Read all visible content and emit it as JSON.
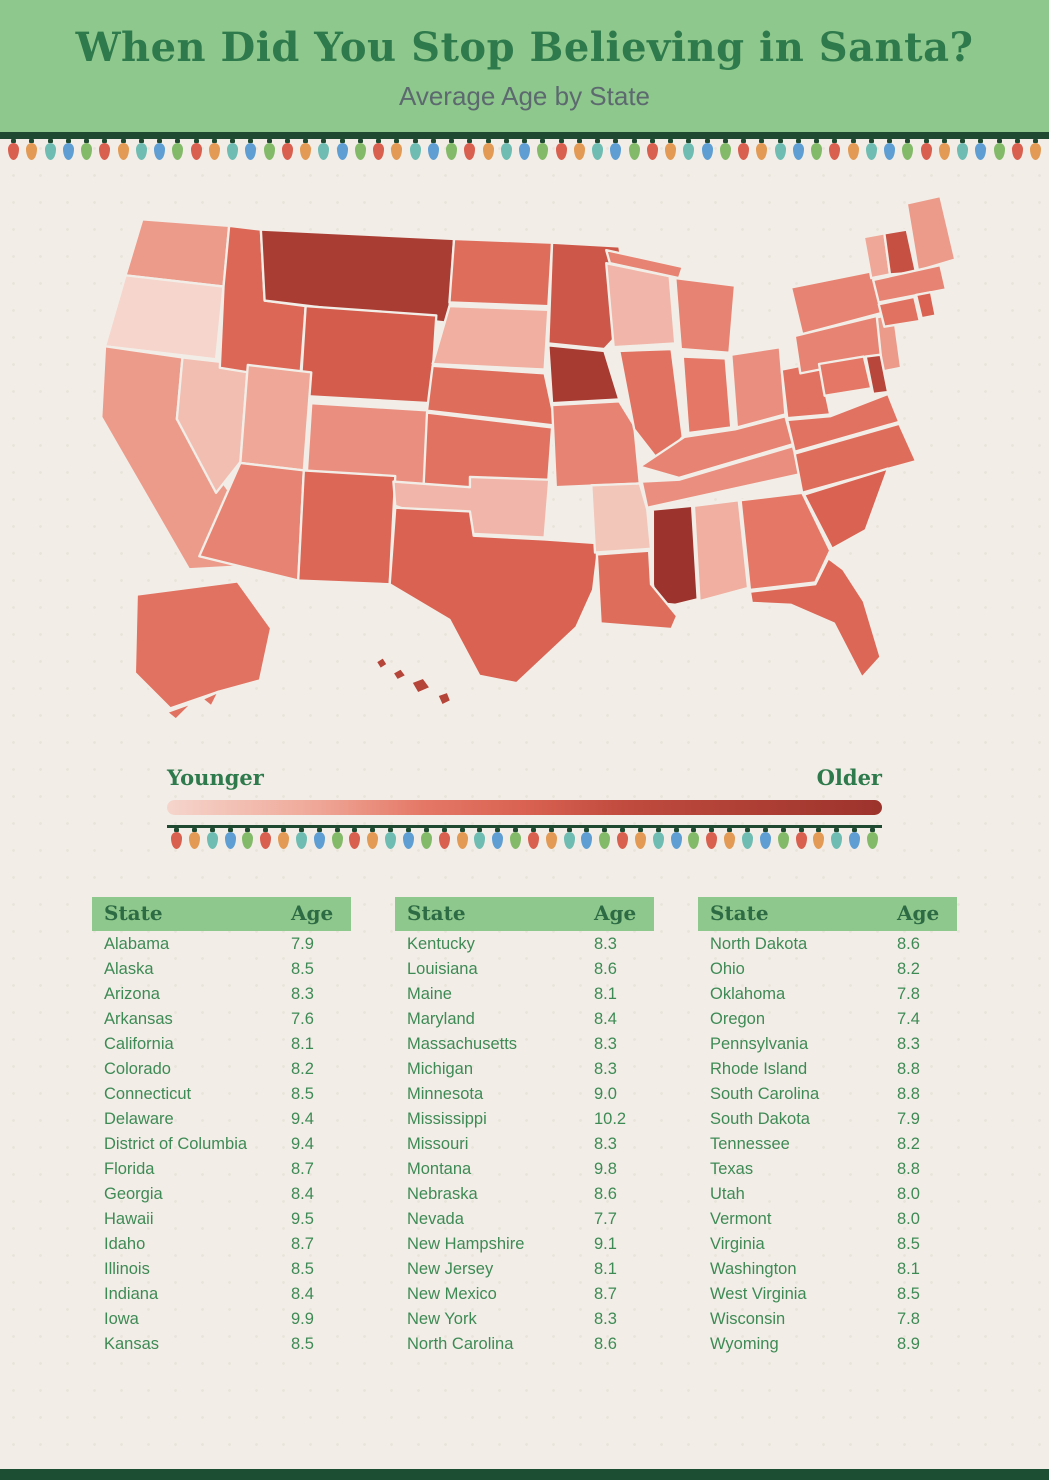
{
  "header": {
    "title": "When Did You Stop Believing in Santa?",
    "subtitle": "Average Age by State"
  },
  "legend": {
    "younger": "Younger",
    "older": "Older"
  },
  "lights": {
    "colors": [
      "#d95f4f",
      "#e29a54",
      "#6ebcb2",
      "#5e9ed3",
      "#83ba69"
    ]
  },
  "colors": {
    "header_bg": "#8fc88c",
    "title_green": "#2e7a4c",
    "subtitle_gray": "#5c6a70",
    "table_text_green": "#3e8a55",
    "wire_dark_green": "#1f4a31",
    "footer_bar": "#1c4e33",
    "map_min": "#f5d5cc",
    "map_max": "#9c332c"
  },
  "table": {
    "headers": {
      "state": "State",
      "age": "Age"
    },
    "columns": [
      [
        {
          "state": "Alabama",
          "age": "7.9"
        },
        {
          "state": "Alaska",
          "age": "8.5"
        },
        {
          "state": "Arizona",
          "age": "8.3"
        },
        {
          "state": "Arkansas",
          "age": "7.6"
        },
        {
          "state": "California",
          "age": "8.1"
        },
        {
          "state": "Colorado",
          "age": "8.2"
        },
        {
          "state": "Connecticut",
          "age": "8.5"
        },
        {
          "state": "Delaware",
          "age": "9.4"
        },
        {
          "state": "District of Columbia",
          "age": "9.4"
        },
        {
          "state": "Florida",
          "age": "8.7"
        },
        {
          "state": "Georgia",
          "age": "8.4"
        },
        {
          "state": "Hawaii",
          "age": "9.5"
        },
        {
          "state": "Idaho",
          "age": "8.7"
        },
        {
          "state": "Illinois",
          "age": "8.5"
        },
        {
          "state": "Indiana",
          "age": "8.4"
        },
        {
          "state": "Iowa",
          "age": "9.9"
        },
        {
          "state": "Kansas",
          "age": "8.5"
        }
      ],
      [
        {
          "state": "Kentucky",
          "age": "8.3"
        },
        {
          "state": "Louisiana",
          "age": "8.6"
        },
        {
          "state": "Maine",
          "age": "8.1"
        },
        {
          "state": "Maryland",
          "age": "8.4"
        },
        {
          "state": "Massachusetts",
          "age": "8.3"
        },
        {
          "state": "Michigan",
          "age": "8.3"
        },
        {
          "state": "Minnesota",
          "age": "9.0"
        },
        {
          "state": "Mississippi",
          "age": "10.2"
        },
        {
          "state": "Missouri",
          "age": "8.3"
        },
        {
          "state": "Montana",
          "age": "9.8"
        },
        {
          "state": "Nebraska",
          "age": "8.6"
        },
        {
          "state": "Nevada",
          "age": "7.7"
        },
        {
          "state": "New Hampshire",
          "age": "9.1"
        },
        {
          "state": "New Jersey",
          "age": "8.1"
        },
        {
          "state": "New Mexico",
          "age": "8.7"
        },
        {
          "state": "New York",
          "age": "8.3"
        },
        {
          "state": "North Carolina",
          "age": "8.6"
        }
      ],
      [
        {
          "state": "North Dakota",
          "age": "8.6"
        },
        {
          "state": "Ohio",
          "age": "8.2"
        },
        {
          "state": "Oklahoma",
          "age": "7.8"
        },
        {
          "state": "Oregon",
          "age": "7.4"
        },
        {
          "state": "Pennsylvania",
          "age": "8.3"
        },
        {
          "state": "Rhode Island",
          "age": "8.8"
        },
        {
          "state": "South Carolina",
          "age": "8.8"
        },
        {
          "state": "South Dakota",
          "age": "7.9"
        },
        {
          "state": "Tennessee",
          "age": "8.2"
        },
        {
          "state": "Texas",
          "age": "8.8"
        },
        {
          "state": "Utah",
          "age": "8.0"
        },
        {
          "state": "Vermont",
          "age": "8.0"
        },
        {
          "state": "Virginia",
          "age": "8.5"
        },
        {
          "state": "Washington",
          "age": "8.1"
        },
        {
          "state": "West Virginia",
          "age": "8.5"
        },
        {
          "state": "Wisconsin",
          "age": "7.8"
        },
        {
          "state": "Wyoming",
          "age": "8.9"
        }
      ]
    ]
  },
  "chart_data": {
    "type": "heatmap",
    "subtype": "us-state-choropleth",
    "title": "When Did You Stop Believing in Santa?",
    "subtitle": "Average Age by State",
    "unit": "years of age",
    "color_scale": {
      "domain": [
        7.4,
        10.2
      ],
      "min_label": "Younger",
      "max_label": "Older",
      "min_color": "#f5d5cc",
      "max_color": "#9c332c"
    },
    "values": {
      "Alabama": 7.9,
      "Alaska": 8.5,
      "Arizona": 8.3,
      "Arkansas": 7.6,
      "California": 8.1,
      "Colorado": 8.2,
      "Connecticut": 8.5,
      "Delaware": 9.4,
      "District of Columbia": 9.4,
      "Florida": 8.7,
      "Georgia": 8.4,
      "Hawaii": 9.5,
      "Idaho": 8.7,
      "Illinois": 8.5,
      "Indiana": 8.4,
      "Iowa": 9.9,
      "Kansas": 8.5,
      "Kentucky": 8.3,
      "Louisiana": 8.6,
      "Maine": 8.1,
      "Maryland": 8.4,
      "Massachusetts": 8.3,
      "Michigan": 8.3,
      "Minnesota": 9.0,
      "Mississippi": 10.2,
      "Missouri": 8.3,
      "Montana": 9.8,
      "Nebraska": 8.6,
      "Nevada": 7.7,
      "New Hampshire": 9.1,
      "New Jersey": 8.1,
      "New Mexico": 8.7,
      "New York": 8.3,
      "North Carolina": 8.6,
      "North Dakota": 8.6,
      "Ohio": 8.2,
      "Oklahoma": 7.8,
      "Oregon": 7.4,
      "Pennsylvania": 8.3,
      "Rhode Island": 8.8,
      "South Carolina": 8.8,
      "South Dakota": 7.9,
      "Tennessee": 8.2,
      "Texas": 8.8,
      "Utah": 8.0,
      "Vermont": 8.0,
      "Virginia": 8.5,
      "Washington": 8.1,
      "West Virginia": 8.5,
      "Wisconsin": 7.8,
      "Wyoming": 8.9
    }
  }
}
